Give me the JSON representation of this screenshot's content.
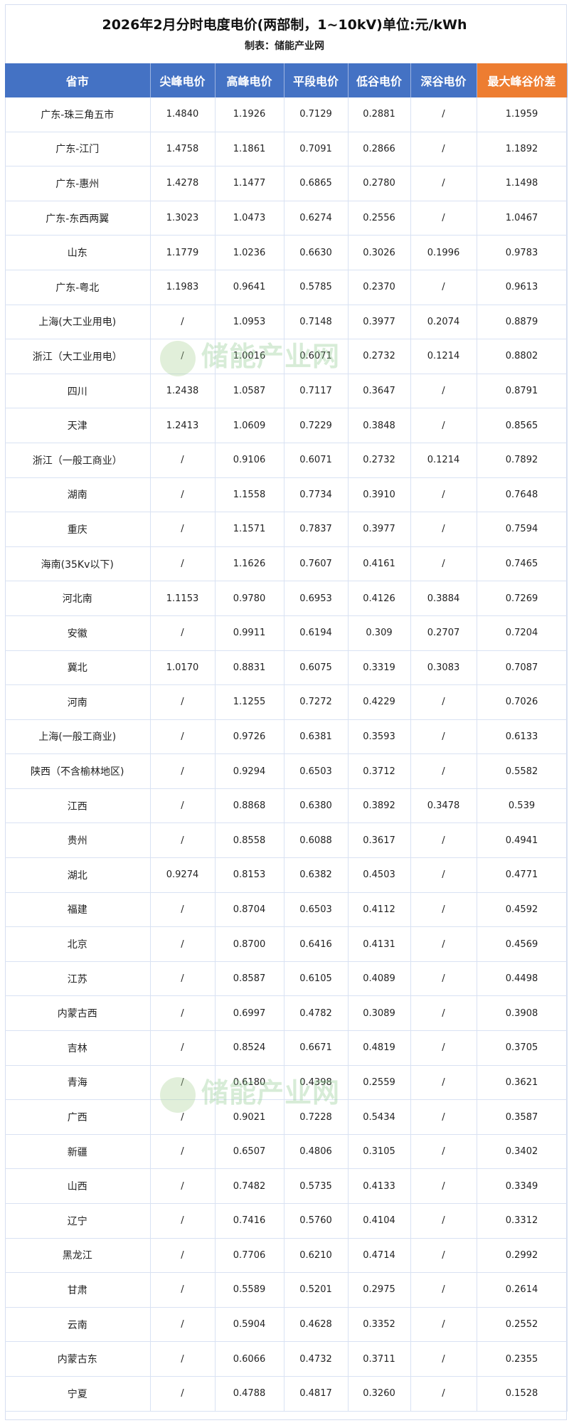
{
  "title": "2026年2月分时电度电价(两部制，1~10kV)单位:元/kWh",
  "subtitle": "制表：储能产业网",
  "watermark": "储能产业网",
  "colors": {
    "header": "#4472c4",
    "highlight_header": "#ed7d31"
  },
  "columns": [
    "省市",
    "尖峰电价",
    "高峰电价",
    "平段电价",
    "低谷电价",
    "深谷电价",
    "最大峰谷价差"
  ],
  "rows": [
    [
      "广东-珠三角五市",
      "1.4840",
      "1.1926",
      "0.7129",
      "0.2881",
      "/",
      "1.1959"
    ],
    [
      "广东-江门",
      "1.4758",
      "1.1861",
      "0.7091",
      "0.2866",
      "/",
      "1.1892"
    ],
    [
      "广东-惠州",
      "1.4278",
      "1.1477",
      "0.6865",
      "0.2780",
      "/",
      "1.1498"
    ],
    [
      "广东-东西两翼",
      "1.3023",
      "1.0473",
      "0.6274",
      "0.2556",
      "/",
      "1.0467"
    ],
    [
      "山东",
      "1.1779",
      "1.0236",
      "0.6630",
      "0.3026",
      "0.1996",
      "0.9783"
    ],
    [
      "广东-粤北",
      "1.1983",
      "0.9641",
      "0.5785",
      "0.2370",
      "/",
      "0.9613"
    ],
    [
      "上海(大工业用电)",
      "/",
      "1.0953",
      "0.7148",
      "0.3977",
      "0.2074",
      "0.8879"
    ],
    [
      "浙江（大工业用电）",
      "/",
      "1.0016",
      "0.6071",
      "0.2732",
      "0.1214",
      "0.8802"
    ],
    [
      "四川",
      "1.2438",
      "1.0587",
      "0.7117",
      "0.3647",
      "/",
      "0.8791"
    ],
    [
      "天津",
      "1.2413",
      "1.0609",
      "0.7229",
      "0.3848",
      "/",
      "0.8565"
    ],
    [
      "浙江（一般工商业）",
      "/",
      "0.9106",
      "0.6071",
      "0.2732",
      "0.1214",
      "0.7892"
    ],
    [
      "湖南",
      "/",
      "1.1558",
      "0.7734",
      "0.3910",
      "/",
      "0.7648"
    ],
    [
      "重庆",
      "/",
      "1.1571",
      "0.7837",
      "0.3977",
      "/",
      "0.7594"
    ],
    [
      "海南(35Kv以下)",
      "/",
      "1.1626",
      "0.7607",
      "0.4161",
      "/",
      "0.7465"
    ],
    [
      "河北南",
      "1.1153",
      "0.9780",
      "0.6953",
      "0.4126",
      "0.3884",
      "0.7269"
    ],
    [
      "安徽",
      "/",
      "0.9911",
      "0.6194",
      "0.309",
      "0.2707",
      "0.7204"
    ],
    [
      "冀北",
      "1.0170",
      "0.8831",
      "0.6075",
      "0.3319",
      "0.3083",
      "0.7087"
    ],
    [
      "河南",
      "/",
      "1.1255",
      "0.7272",
      "0.4229",
      "/",
      "0.7026"
    ],
    [
      "上海(一般工商业)",
      "/",
      "0.9726",
      "0.6381",
      "0.3593",
      "/",
      "0.6133"
    ],
    [
      "陕西（不含榆林地区)",
      "/",
      "0.9294",
      "0.6503",
      "0.3712",
      "/",
      "0.5582"
    ],
    [
      "江西",
      "/",
      "0.8868",
      "0.6380",
      "0.3892",
      "0.3478",
      "0.539"
    ],
    [
      "贵州",
      "/",
      "0.8558",
      "0.6088",
      "0.3617",
      "/",
      "0.4941"
    ],
    [
      "湖北",
      "0.9274",
      "0.8153",
      "0.6382",
      "0.4503",
      "/",
      "0.4771"
    ],
    [
      "福建",
      "/",
      "0.8704",
      "0.6503",
      "0.4112",
      "/",
      "0.4592"
    ],
    [
      "北京",
      "/",
      "0.8700",
      "0.6416",
      "0.4131",
      "/",
      "0.4569"
    ],
    [
      "江苏",
      "/",
      "0.8587",
      "0.6105",
      "0.4089",
      "/",
      "0.4498"
    ],
    [
      "内蒙古西",
      "/",
      "0.6997",
      "0.4782",
      "0.3089",
      "/",
      "0.3908"
    ],
    [
      "吉林",
      "/",
      "0.8524",
      "0.6671",
      "0.4819",
      "/",
      "0.3705"
    ],
    [
      "青海",
      "/",
      "0.6180",
      "0.4398",
      "0.2559",
      "/",
      "0.3621"
    ],
    [
      "广西",
      "/",
      "0.9021",
      "0.7228",
      "0.5434",
      "/",
      "0.3587"
    ],
    [
      "新疆",
      "/",
      "0.6507",
      "0.4806",
      "0.3105",
      "/",
      "0.3402"
    ],
    [
      "山西",
      "/",
      "0.7482",
      "0.5735",
      "0.4133",
      "/",
      "0.3349"
    ],
    [
      "辽宁",
      "/",
      "0.7416",
      "0.5760",
      "0.4104",
      "/",
      "0.3312"
    ],
    [
      "黑龙江",
      "/",
      "0.7706",
      "0.6210",
      "0.4714",
      "/",
      "0.2992"
    ],
    [
      "甘肃",
      "/",
      "0.5589",
      "0.5201",
      "0.2975",
      "/",
      "0.2614"
    ],
    [
      "云南",
      "/",
      "0.5904",
      "0.4628",
      "0.3352",
      "/",
      "0.2552"
    ],
    [
      "内蒙古东",
      "/",
      "0.6066",
      "0.4732",
      "0.3711",
      "/",
      "0.2355"
    ],
    [
      "宁夏",
      "/",
      "0.4788",
      "0.4817",
      "0.3260",
      "/",
      "0.1528"
    ]
  ]
}
